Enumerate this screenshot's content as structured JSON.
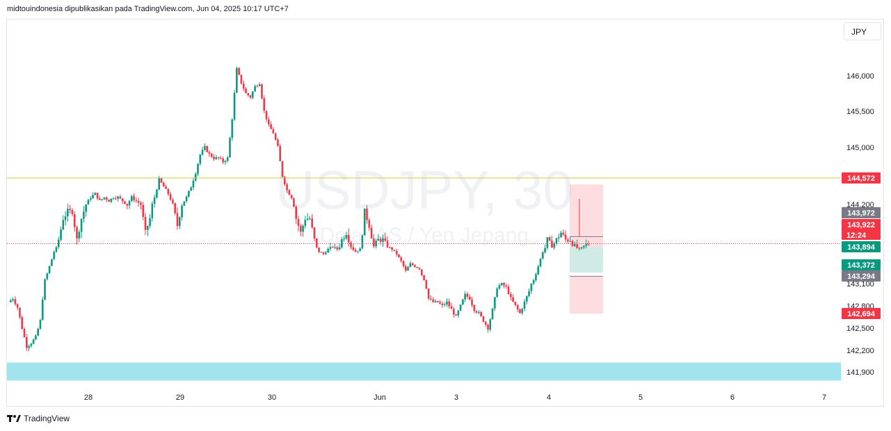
{
  "header": {
    "attribution": "midtouindonesia dipublikasikan pada TradingView.com, Jun 04, 2025 10:17 UTC+7"
  },
  "currency_button": {
    "label": "JPY"
  },
  "footer": {
    "brand": "TradingView"
  },
  "watermark": {
    "symbol": "USDJPY, 30",
    "description": "Dolar AS / Yen Jepang"
  },
  "colors": {
    "up": "#089981",
    "down": "#f23645",
    "support": "#a2e4ee",
    "resistance": "#c9c94a"
  },
  "chart_data": {
    "type": "candlestick",
    "symbol": "USDJPY",
    "interval": "30",
    "currency": "JPY",
    "y_ticks": [
      146000,
      145500,
      145000,
      144200,
      143100,
      142800,
      142500,
      142200,
      141900
    ],
    "y_tick_labels": [
      "146,000",
      "145,500",
      "145,000",
      "144,200",
      "143,100",
      "142,800",
      "142,500",
      "142,200",
      "141,900"
    ],
    "x_ticks": [
      "28",
      "29",
      "30",
      "Jun",
      "3",
      "4",
      "5",
      "6",
      "7"
    ],
    "price_tags": [
      {
        "label": "144,572",
        "value": 144572,
        "color": "#f23645"
      },
      {
        "label": "143,972",
        "value": 143972,
        "color": "#787b86"
      },
      {
        "label": "143,922",
        "value": 143922,
        "color": "#f23645",
        "countdown": "12:24"
      },
      {
        "label": "143,894",
        "value": 143894,
        "color": "#089981"
      },
      {
        "label": "143,372",
        "value": 143372,
        "color": "#089981"
      },
      {
        "label": "143,294",
        "value": 143294,
        "color": "#787b86"
      },
      {
        "label": "142,694",
        "value": 142694,
        "color": "#f23645"
      }
    ],
    "horizontal_line": {
      "value": 144572
    },
    "last_price": 143922,
    "support_zone": {
      "from": 141780,
      "to": 142030
    },
    "position_box": {
      "entry": 143894,
      "target": 143372,
      "stop_top": 144480,
      "stop_bottom_from": 143294,
      "stop_bottom_to": 142694
    },
    "price_path": [
      [
        0,
        142850
      ],
      [
        2,
        142900
      ],
      [
        4,
        142780
      ],
      [
        6,
        142500
      ],
      [
        8,
        142250
      ],
      [
        10,
        142300
      ],
      [
        12,
        142380
      ],
      [
        14,
        142600
      ],
      [
        16,
        143200
      ],
      [
        18,
        143500
      ],
      [
        20,
        143800
      ],
      [
        22,
        143950
      ],
      [
        24,
        144100
      ],
      [
        26,
        144150
      ],
      [
        28,
        144150
      ],
      [
        30,
        143950
      ],
      [
        32,
        144100
      ],
      [
        34,
        144200
      ],
      [
        36,
        144300
      ],
      [
        38,
        144350
      ],
      [
        40,
        144250
      ],
      [
        42,
        144300
      ],
      [
        44,
        144250
      ],
      [
        46,
        144300
      ],
      [
        48,
        144300
      ],
      [
        50,
        144250
      ],
      [
        52,
        144200
      ],
      [
        54,
        144300
      ],
      [
        56,
        144250
      ],
      [
        58,
        144200
      ],
      [
        60,
        144000
      ],
      [
        62,
        144100
      ],
      [
        64,
        144300
      ],
      [
        66,
        144550
      ],
      [
        68,
        144450
      ],
      [
        70,
        144350
      ],
      [
        72,
        144200
      ],
      [
        74,
        144050
      ],
      [
        76,
        144200
      ],
      [
        78,
        144300
      ],
      [
        80,
        144450
      ],
      [
        82,
        144650
      ],
      [
        84,
        144900
      ],
      [
        86,
        145000
      ],
      [
        88,
        144900
      ],
      [
        90,
        144850
      ],
      [
        92,
        144850
      ],
      [
        94,
        144800
      ],
      [
        96,
        144850
      ],
      [
        98,
        145400
      ],
      [
        100,
        146100
      ],
      [
        102,
        145900
      ],
      [
        104,
        145750
      ],
      [
        106,
        145700
      ],
      [
        108,
        145850
      ],
      [
        110,
        145900
      ],
      [
        112,
        145500
      ],
      [
        114,
        145300
      ],
      [
        116,
        145200
      ],
      [
        118,
        145000
      ],
      [
        120,
        144600
      ],
      [
        122,
        144400
      ],
      [
        124,
        144300
      ],
      [
        126,
        144100
      ],
      [
        128,
        144000
      ],
      [
        130,
        144100
      ],
      [
        132,
        144100
      ],
      [
        134,
        143950
      ],
      [
        136,
        143800
      ],
      [
        138,
        143750
      ],
      [
        140,
        143850
      ],
      [
        142,
        143900
      ],
      [
        144,
        143850
      ],
      [
        146,
        143950
      ],
      [
        148,
        144000
      ],
      [
        150,
        143900
      ],
      [
        152,
        143800
      ],
      [
        154,
        143850
      ],
      [
        156,
        144150
      ],
      [
        158,
        144050
      ],
      [
        160,
        143900
      ],
      [
        162,
        143950
      ],
      [
        164,
        143950
      ],
      [
        166,
        143900
      ],
      [
        168,
        143850
      ],
      [
        170,
        143750
      ],
      [
        172,
        143600
      ],
      [
        174,
        143400
      ],
      [
        176,
        143550
      ],
      [
        178,
        143500
      ],
      [
        180,
        143450
      ],
      [
        182,
        143200
      ],
      [
        184,
        142900
      ],
      [
        186,
        142850
      ],
      [
        188,
        142850
      ],
      [
        190,
        142800
      ],
      [
        192,
        142850
      ],
      [
        194,
        142750
      ],
      [
        196,
        142650
      ],
      [
        198,
        142800
      ],
      [
        200,
        142950
      ],
      [
        202,
        142900
      ],
      [
        204,
        142750
      ],
      [
        206,
        142700
      ],
      [
        208,
        142600
      ],
      [
        210,
        142500
      ],
      [
        212,
        142750
      ],
      [
        214,
        143050
      ],
      [
        216,
        143100
      ],
      [
        218,
        143050
      ],
      [
        220,
        142900
      ],
      [
        222,
        142800
      ],
      [
        224,
        142700
      ],
      [
        226,
        142850
      ],
      [
        228,
        143000
      ],
      [
        230,
        143200
      ],
      [
        232,
        143500
      ],
      [
        234,
        143800
      ],
      [
        236,
        143950
      ],
      [
        238,
        143900
      ],
      [
        240,
        143950
      ],
      [
        242,
        144000
      ],
      [
        244,
        143950
      ],
      [
        246,
        143950
      ],
      [
        248,
        143900
      ],
      [
        250,
        143850
      ],
      [
        252,
        143900
      ],
      [
        254,
        143922
      ]
    ]
  }
}
